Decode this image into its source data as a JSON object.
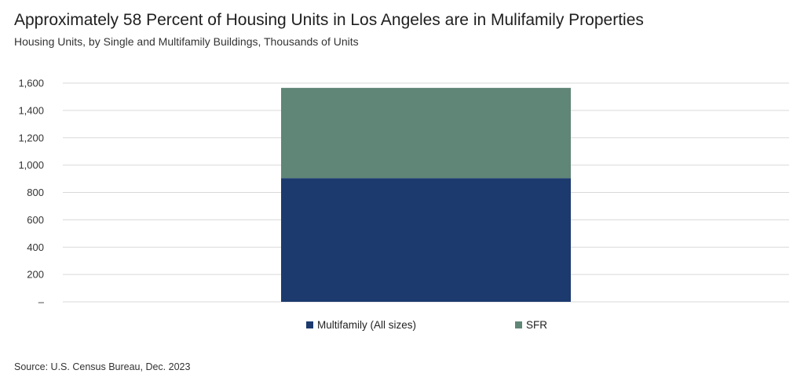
{
  "title": "Approximately 58 Percent of Housing Units in Los Angeles are in Mulifamily Properties",
  "subtitle": "Housing Units, by Single and Multifamily Buildings, Thousands of Units",
  "source": "Source: U.S. Census Bureau, Dec. 2023",
  "colors": {
    "multifamily": "#1c3a6e",
    "sfr": "#5f8677",
    "grid": "#d9d9d9"
  },
  "chart_data": {
    "type": "bar",
    "stacked": true,
    "categories": [
      ""
    ],
    "series": [
      {
        "name": "Multifamily  (All sizes)",
        "values": [
          905
        ]
      },
      {
        "name": "SFR",
        "values": [
          660
        ]
      }
    ],
    "ylim": [
      0,
      1600
    ],
    "yticks": [
      0,
      200,
      400,
      600,
      800,
      1000,
      1200,
      1400,
      1600
    ],
    "ytick_labels": [
      "–",
      "200",
      "400",
      "600",
      "800",
      "1,000",
      "1,200",
      "1,400",
      "1,600"
    ],
    "grid": true,
    "legend": "bottom"
  }
}
